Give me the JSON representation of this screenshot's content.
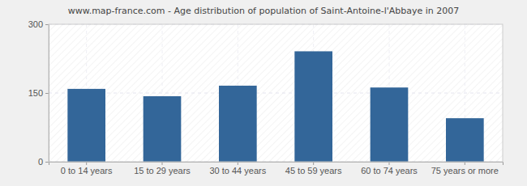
{
  "chart_data": {
    "type": "bar",
    "title": "www.map-france.com - Age distribution of population of Saint-Antoine-l'Abbaye in 2007",
    "categories": [
      "0 to 14 years",
      "15 to 29 years",
      "30 to 44 years",
      "45 to 59 years",
      "60 to 74 years",
      "75 years or more"
    ],
    "values": [
      159,
      143,
      166,
      241,
      162,
      95
    ],
    "color": "#336699",
    "ylim": [
      0,
      300
    ],
    "yticks": [
      0,
      150,
      300
    ],
    "grid": true
  }
}
